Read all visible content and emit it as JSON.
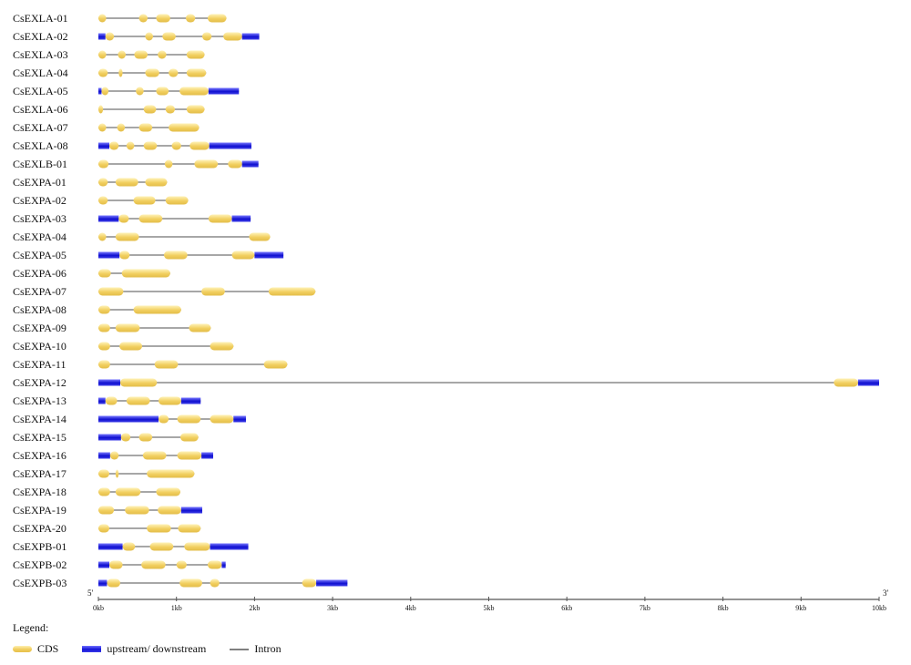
{
  "colors": {
    "cds_top": "#fff2b8",
    "cds_mid": "#f1cf5f",
    "cds_bottom": "#e3bd49",
    "utr_top": "#7a7aff",
    "utr_mid": "#1010d0",
    "utr_bottom": "#3d3de8",
    "intron": "#8a8a8a",
    "axis": "#555555"
  },
  "legend": {
    "title": "Legend:",
    "items": [
      {
        "key": "cds",
        "label": "CDS"
      },
      {
        "key": "utr",
        "label": "upstream/ downstream"
      },
      {
        "key": "intron",
        "label": "Intron"
      }
    ]
  },
  "chart_data": {
    "type": "gene_structure",
    "axis": {
      "unit": "kb",
      "min": 0,
      "max": 10,
      "tick_labels": [
        "0kb",
        "1kb",
        "2kb",
        "3kb",
        "4kb",
        "5kb",
        "6kb",
        "7kb",
        "8kb",
        "9kb",
        "10kb"
      ],
      "left_end_label": "5'",
      "right_end_label": "3'"
    },
    "genes": [
      {
        "name": "CsEXLA-01",
        "length": 1.64,
        "cds": [
          [
            0,
            0.1
          ],
          [
            0.52,
            0.63
          ],
          [
            0.74,
            0.92
          ],
          [
            1.12,
            1.24
          ],
          [
            1.4,
            1.64
          ]
        ],
        "utr": []
      },
      {
        "name": "CsEXLA-02",
        "length": 2.06,
        "cds": [
          [
            0.09,
            0.2
          ],
          [
            0.6,
            0.7
          ],
          [
            0.82,
            0.99
          ],
          [
            1.33,
            1.45
          ],
          [
            1.6,
            1.84
          ]
        ],
        "utr": [
          [
            0,
            0.09
          ],
          [
            1.84,
            2.06
          ]
        ]
      },
      {
        "name": "CsEXLA-03",
        "length": 1.36,
        "cds": [
          [
            0,
            0.1
          ],
          [
            0.25,
            0.35
          ],
          [
            0.46,
            0.63
          ],
          [
            0.76,
            0.87
          ],
          [
            1.13,
            1.36
          ]
        ],
        "utr": []
      },
      {
        "name": "CsEXLA-04",
        "length": 1.38,
        "cds": [
          [
            0,
            0.12
          ],
          [
            0.26,
            0.31
          ],
          [
            0.6,
            0.78
          ],
          [
            0.9,
            1.02
          ],
          [
            1.13,
            1.38
          ]
        ],
        "utr": []
      },
      {
        "name": "CsEXLA-05",
        "length": 1.8,
        "cds": [
          [
            0.04,
            0.13
          ],
          [
            0.48,
            0.58
          ],
          [
            0.74,
            0.9
          ],
          [
            1.04,
            1.41
          ]
        ],
        "utr": [
          [
            0,
            0.04
          ],
          [
            1.41,
            1.8
          ]
        ]
      },
      {
        "name": "CsEXLA-06",
        "length": 1.36,
        "cds": [
          [
            0,
            0.06
          ],
          [
            0.58,
            0.74
          ],
          [
            0.86,
            0.98
          ],
          [
            1.13,
            1.36
          ]
        ],
        "utr": []
      },
      {
        "name": "CsEXLA-07",
        "length": 1.29,
        "cds": [
          [
            0,
            0.1
          ],
          [
            0.24,
            0.34
          ],
          [
            0.52,
            0.69
          ],
          [
            0.9,
            1.29
          ]
        ],
        "utr": []
      },
      {
        "name": "CsEXLA-08",
        "length": 1.96,
        "cds": [
          [
            0.14,
            0.26
          ],
          [
            0.36,
            0.46
          ],
          [
            0.58,
            0.75
          ],
          [
            0.94,
            1.06
          ],
          [
            1.17,
            1.42
          ]
        ],
        "utr": [
          [
            0,
            0.14
          ],
          [
            1.42,
            1.96
          ]
        ]
      },
      {
        "name": "CsEXLB-01",
        "length": 2.05,
        "cds": [
          [
            0,
            0.13
          ],
          [
            0.85,
            0.95
          ],
          [
            1.23,
            1.53
          ],
          [
            1.66,
            1.84
          ]
        ],
        "utr": [
          [
            1.84,
            2.05
          ]
        ]
      },
      {
        "name": "CsEXPA-01",
        "length": 0.88,
        "cds": [
          [
            0,
            0.12
          ],
          [
            0.22,
            0.51
          ],
          [
            0.6,
            0.88
          ]
        ],
        "utr": []
      },
      {
        "name": "CsEXPA-02",
        "length": 1.15,
        "cds": [
          [
            0,
            0.12
          ],
          [
            0.45,
            0.73
          ],
          [
            0.86,
            1.15
          ]
        ],
        "utr": []
      },
      {
        "name": "CsEXPA-03",
        "length": 1.95,
        "cds": [
          [
            0.26,
            0.39
          ],
          [
            0.52,
            0.82
          ],
          [
            1.41,
            1.71
          ]
        ],
        "utr": [
          [
            0,
            0.26
          ],
          [
            1.71,
            1.95
          ]
        ]
      },
      {
        "name": "CsEXPA-04",
        "length": 2.2,
        "cds": [
          [
            0,
            0.1
          ],
          [
            0.22,
            0.52
          ],
          [
            1.93,
            2.2
          ]
        ],
        "utr": []
      },
      {
        "name": "CsEXPA-05",
        "length": 2.37,
        "cds": [
          [
            0.27,
            0.4
          ],
          [
            0.84,
            1.14
          ],
          [
            1.71,
            2.0
          ]
        ],
        "utr": [
          [
            0,
            0.27
          ],
          [
            2.0,
            2.37
          ]
        ]
      },
      {
        "name": "CsEXPA-06",
        "length": 0.92,
        "cds": [
          [
            0,
            0.16
          ],
          [
            0.3,
            0.92
          ]
        ],
        "utr": []
      },
      {
        "name": "CsEXPA-07",
        "length": 2.78,
        "cds": [
          [
            0,
            0.32
          ],
          [
            1.32,
            1.62
          ],
          [
            2.18,
            2.78
          ]
        ],
        "utr": []
      },
      {
        "name": "CsEXPA-08",
        "length": 1.06,
        "cds": [
          [
            0,
            0.15
          ],
          [
            0.45,
            1.06
          ]
        ],
        "utr": []
      },
      {
        "name": "CsEXPA-09",
        "length": 1.44,
        "cds": [
          [
            0,
            0.15
          ],
          [
            0.22,
            0.53
          ],
          [
            1.16,
            1.44
          ]
        ],
        "utr": []
      },
      {
        "name": "CsEXPA-10",
        "length": 1.73,
        "cds": [
          [
            0,
            0.15
          ],
          [
            0.27,
            0.56
          ],
          [
            1.43,
            1.73
          ]
        ],
        "utr": []
      },
      {
        "name": "CsEXPA-11",
        "length": 2.42,
        "cds": [
          [
            0,
            0.15
          ],
          [
            0.72,
            1.02
          ],
          [
            2.12,
            2.42
          ]
        ],
        "utr": []
      },
      {
        "name": "CsEXPA-12",
        "length": 10.0,
        "cds": [
          [
            0.28,
            0.75
          ],
          [
            9.42,
            9.73
          ]
        ],
        "utr": [
          [
            0,
            0.28
          ],
          [
            9.73,
            10.0
          ]
        ]
      },
      {
        "name": "CsEXPA-13",
        "length": 1.31,
        "cds": [
          [
            0.09,
            0.24
          ],
          [
            0.36,
            0.66
          ],
          [
            0.77,
            1.06
          ]
        ],
        "utr": [
          [
            0,
            0.09
          ],
          [
            1.06,
            1.31
          ]
        ]
      },
      {
        "name": "CsEXPA-14",
        "length": 1.89,
        "cds": [
          [
            0.77,
            0.9
          ],
          [
            1.01,
            1.31
          ],
          [
            1.43,
            1.73
          ]
        ],
        "utr": [
          [
            0,
            0.77
          ],
          [
            1.73,
            1.89
          ]
        ]
      },
      {
        "name": "CsEXPA-15",
        "length": 1.28,
        "cds": [
          [
            0.29,
            0.41
          ],
          [
            0.52,
            0.69
          ],
          [
            1.05,
            1.28
          ]
        ],
        "utr": [
          [
            0,
            0.29
          ]
        ]
      },
      {
        "name": "CsEXPA-16",
        "length": 1.47,
        "cds": [
          [
            0.15,
            0.26
          ],
          [
            0.57,
            0.87
          ],
          [
            1.01,
            1.32
          ]
        ],
        "utr": [
          [
            0,
            0.15
          ],
          [
            1.32,
            1.47
          ]
        ]
      },
      {
        "name": "CsEXPA-17",
        "length": 1.23,
        "cds": [
          [
            0,
            0.14
          ],
          [
            0.22,
            0.26
          ],
          [
            0.62,
            1.23
          ]
        ],
        "utr": []
      },
      {
        "name": "CsEXPA-18",
        "length": 1.05,
        "cds": [
          [
            0,
            0.15
          ],
          [
            0.22,
            0.54
          ],
          [
            0.74,
            1.05
          ]
        ],
        "utr": []
      },
      {
        "name": "CsEXPA-19",
        "length": 1.33,
        "cds": [
          [
            0,
            0.2
          ],
          [
            0.34,
            0.65
          ],
          [
            0.76,
            1.06
          ]
        ],
        "utr": [
          [
            1.06,
            1.33
          ]
        ]
      },
      {
        "name": "CsEXPA-20",
        "length": 1.31,
        "cds": [
          [
            0,
            0.14
          ],
          [
            0.62,
            0.93
          ],
          [
            1.02,
            1.31
          ]
        ],
        "utr": []
      },
      {
        "name": "CsEXPB-01",
        "length": 1.92,
        "cds": [
          [
            0.31,
            0.47
          ],
          [
            0.66,
            0.96
          ],
          [
            1.1,
            1.43
          ]
        ],
        "utr": [
          [
            0,
            0.31
          ],
          [
            1.43,
            1.92
          ]
        ]
      },
      {
        "name": "CsEXPB-02",
        "length": 1.63,
        "cds": [
          [
            0.14,
            0.31
          ],
          [
            0.55,
            0.86
          ],
          [
            1.0,
            1.13
          ],
          [
            1.4,
            1.58
          ]
        ],
        "utr": [
          [
            0,
            0.14
          ],
          [
            1.58,
            1.63
          ]
        ]
      },
      {
        "name": "CsEXPB-03",
        "length": 3.19,
        "cds": [
          [
            0.11,
            0.28
          ],
          [
            1.04,
            1.33
          ],
          [
            1.43,
            1.55
          ],
          [
            2.61,
            2.79
          ]
        ],
        "utr": [
          [
            0,
            0.11
          ],
          [
            2.79,
            3.19
          ]
        ]
      }
    ]
  }
}
